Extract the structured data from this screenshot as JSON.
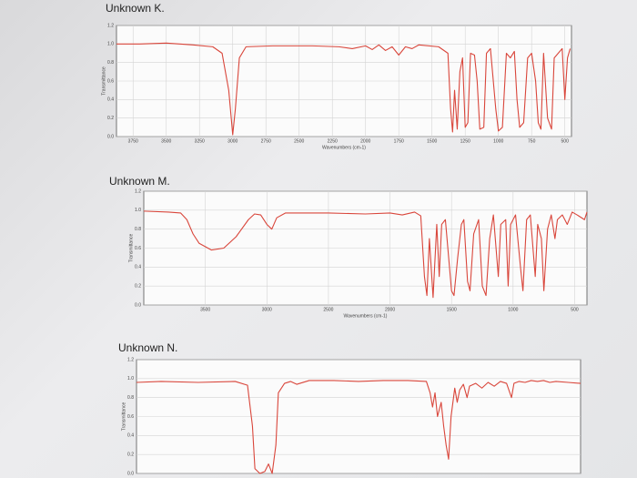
{
  "chart_data": [
    {
      "type": "line",
      "title": "Unknown K.",
      "xlabel": "Wavenumbers (cm-1)",
      "ylabel": "Transmittance",
      "color": "#d9463b",
      "grid": true,
      "xlim": [
        3875,
        450
      ],
      "xticks": [
        3750,
        3500,
        3250,
        3000,
        2750,
        2500,
        2250,
        2000,
        1750,
        1500,
        1250,
        1000,
        750,
        500
      ],
      "ylim": [
        0,
        1.2
      ],
      "yticks": [
        {
          "value": 0,
          "label": "0.0"
        },
        0.2,
        0.4,
        0.6,
        0.8,
        {
          "value": 1,
          "label": "1.0"
        },
        1.2
      ],
      "x": [
        3875,
        3700,
        3500,
        3300,
        3150,
        3080,
        3030,
        3000,
        2980,
        2950,
        2900,
        2700,
        2400,
        2200,
        2100,
        2000,
        1950,
        1900,
        1850,
        1800,
        1750,
        1700,
        1650,
        1600,
        1450,
        1380,
        1360,
        1345,
        1330,
        1310,
        1290,
        1270,
        1250,
        1230,
        1210,
        1180,
        1160,
        1140,
        1110,
        1090,
        1060,
        1020,
        1000,
        970,
        940,
        910,
        880,
        860,
        840,
        810,
        780,
        750,
        720,
        700,
        680,
        660,
        630,
        600,
        580,
        550,
        520,
        500,
        480,
        460
      ],
      "values": [
        1.0,
        1.0,
        1.01,
        0.99,
        0.97,
        0.9,
        0.5,
        0.02,
        0.3,
        0.85,
        0.97,
        0.98,
        0.98,
        0.97,
        0.95,
        0.98,
        0.94,
        0.99,
        0.93,
        0.97,
        0.88,
        0.97,
        0.95,
        0.99,
        0.97,
        0.9,
        0.3,
        0.05,
        0.5,
        0.08,
        0.7,
        0.85,
        0.1,
        0.15,
        0.9,
        0.88,
        0.6,
        0.08,
        0.1,
        0.9,
        0.95,
        0.3,
        0.06,
        0.1,
        0.9,
        0.85,
        0.92,
        0.4,
        0.1,
        0.15,
        0.85,
        0.9,
        0.6,
        0.15,
        0.08,
        0.9,
        0.2,
        0.08,
        0.85,
        0.9,
        0.95,
        0.4,
        0.85,
        0.95
      ]
    },
    {
      "type": "line",
      "title": "Unknown M.",
      "xlabel": "Wavenumbers (cm-1)",
      "ylabel": "Transmittance",
      "color": "#d9463b",
      "grid": true,
      "xlim": [
        4000,
        400
      ],
      "xticks": [
        3500,
        3000,
        2500,
        2000,
        1500,
        1000,
        500
      ],
      "ylim": [
        0,
        1.2
      ],
      "yticks": [
        {
          "value": 0,
          "label": "0.0"
        },
        0.2,
        0.4,
        0.6,
        0.8,
        {
          "value": 1,
          "label": "1.0"
        },
        1.2
      ],
      "x": [
        4000,
        3800,
        3700,
        3650,
        3600,
        3550,
        3450,
        3350,
        3250,
        3150,
        3100,
        3050,
        3000,
        2960,
        2920,
        2850,
        2500,
        2200,
        2000,
        1900,
        1800,
        1750,
        1720,
        1700,
        1680,
        1650,
        1620,
        1600,
        1580,
        1550,
        1500,
        1480,
        1450,
        1420,
        1400,
        1370,
        1350,
        1320,
        1280,
        1250,
        1220,
        1190,
        1160,
        1120,
        1100,
        1060,
        1040,
        1020,
        980,
        940,
        920,
        890,
        860,
        820,
        800,
        770,
        750,
        720,
        690,
        660,
        640,
        600,
        560,
        520,
        480,
        420,
        400
      ],
      "values": [
        0.99,
        0.98,
        0.97,
        0.9,
        0.75,
        0.65,
        0.58,
        0.6,
        0.72,
        0.9,
        0.96,
        0.95,
        0.85,
        0.8,
        0.92,
        0.97,
        0.97,
        0.96,
        0.97,
        0.95,
        0.98,
        0.94,
        0.3,
        0.1,
        0.7,
        0.08,
        0.85,
        0.3,
        0.85,
        0.9,
        0.15,
        0.1,
        0.5,
        0.85,
        0.9,
        0.25,
        0.15,
        0.75,
        0.9,
        0.2,
        0.1,
        0.7,
        0.95,
        0.3,
        0.85,
        0.9,
        0.2,
        0.85,
        0.95,
        0.4,
        0.15,
        0.9,
        0.95,
        0.3,
        0.85,
        0.7,
        0.15,
        0.8,
        0.95,
        0.7,
        0.9,
        0.95,
        0.85,
        0.98,
        0.95,
        0.9,
        0.98
      ]
    },
    {
      "type": "line",
      "title": "Unknown N.",
      "ylabel": "Transmittance",
      "color": "#d9463b",
      "grid": true,
      "xlim": [
        4000,
        400
      ],
      "ylim": [
        0,
        1.2
      ],
      "yticks": [
        {
          "value": 0,
          "label": "0.0"
        },
        0.2,
        0.4,
        0.6,
        0.8,
        {
          "value": 1,
          "label": "1.0"
        },
        1.2
      ],
      "x": [
        4000,
        3800,
        3500,
        3200,
        3100,
        3060,
        3040,
        3000,
        2960,
        2930,
        2900,
        2870,
        2850,
        2800,
        2750,
        2700,
        2600,
        2400,
        2200,
        2000,
        1800,
        1650,
        1620,
        1600,
        1580,
        1560,
        1530,
        1510,
        1490,
        1470,
        1450,
        1420,
        1400,
        1380,
        1350,
        1320,
        1300,
        1250,
        1200,
        1150,
        1100,
        1050,
        1000,
        960,
        940,
        900,
        850,
        800,
        750,
        700,
        650,
        600,
        500,
        400
      ],
      "values": [
        0.96,
        0.97,
        0.96,
        0.97,
        0.93,
        0.5,
        0.05,
        0.0,
        0.02,
        0.1,
        0.0,
        0.3,
        0.85,
        0.95,
        0.97,
        0.94,
        0.98,
        0.98,
        0.97,
        0.98,
        0.98,
        0.97,
        0.85,
        0.7,
        0.85,
        0.6,
        0.75,
        0.5,
        0.3,
        0.15,
        0.6,
        0.9,
        0.75,
        0.88,
        0.94,
        0.8,
        0.92,
        0.95,
        0.9,
        0.96,
        0.92,
        0.97,
        0.95,
        0.8,
        0.95,
        0.97,
        0.96,
        0.98,
        0.97,
        0.98,
        0.96,
        0.97,
        0.96,
        0.95
      ]
    }
  ]
}
